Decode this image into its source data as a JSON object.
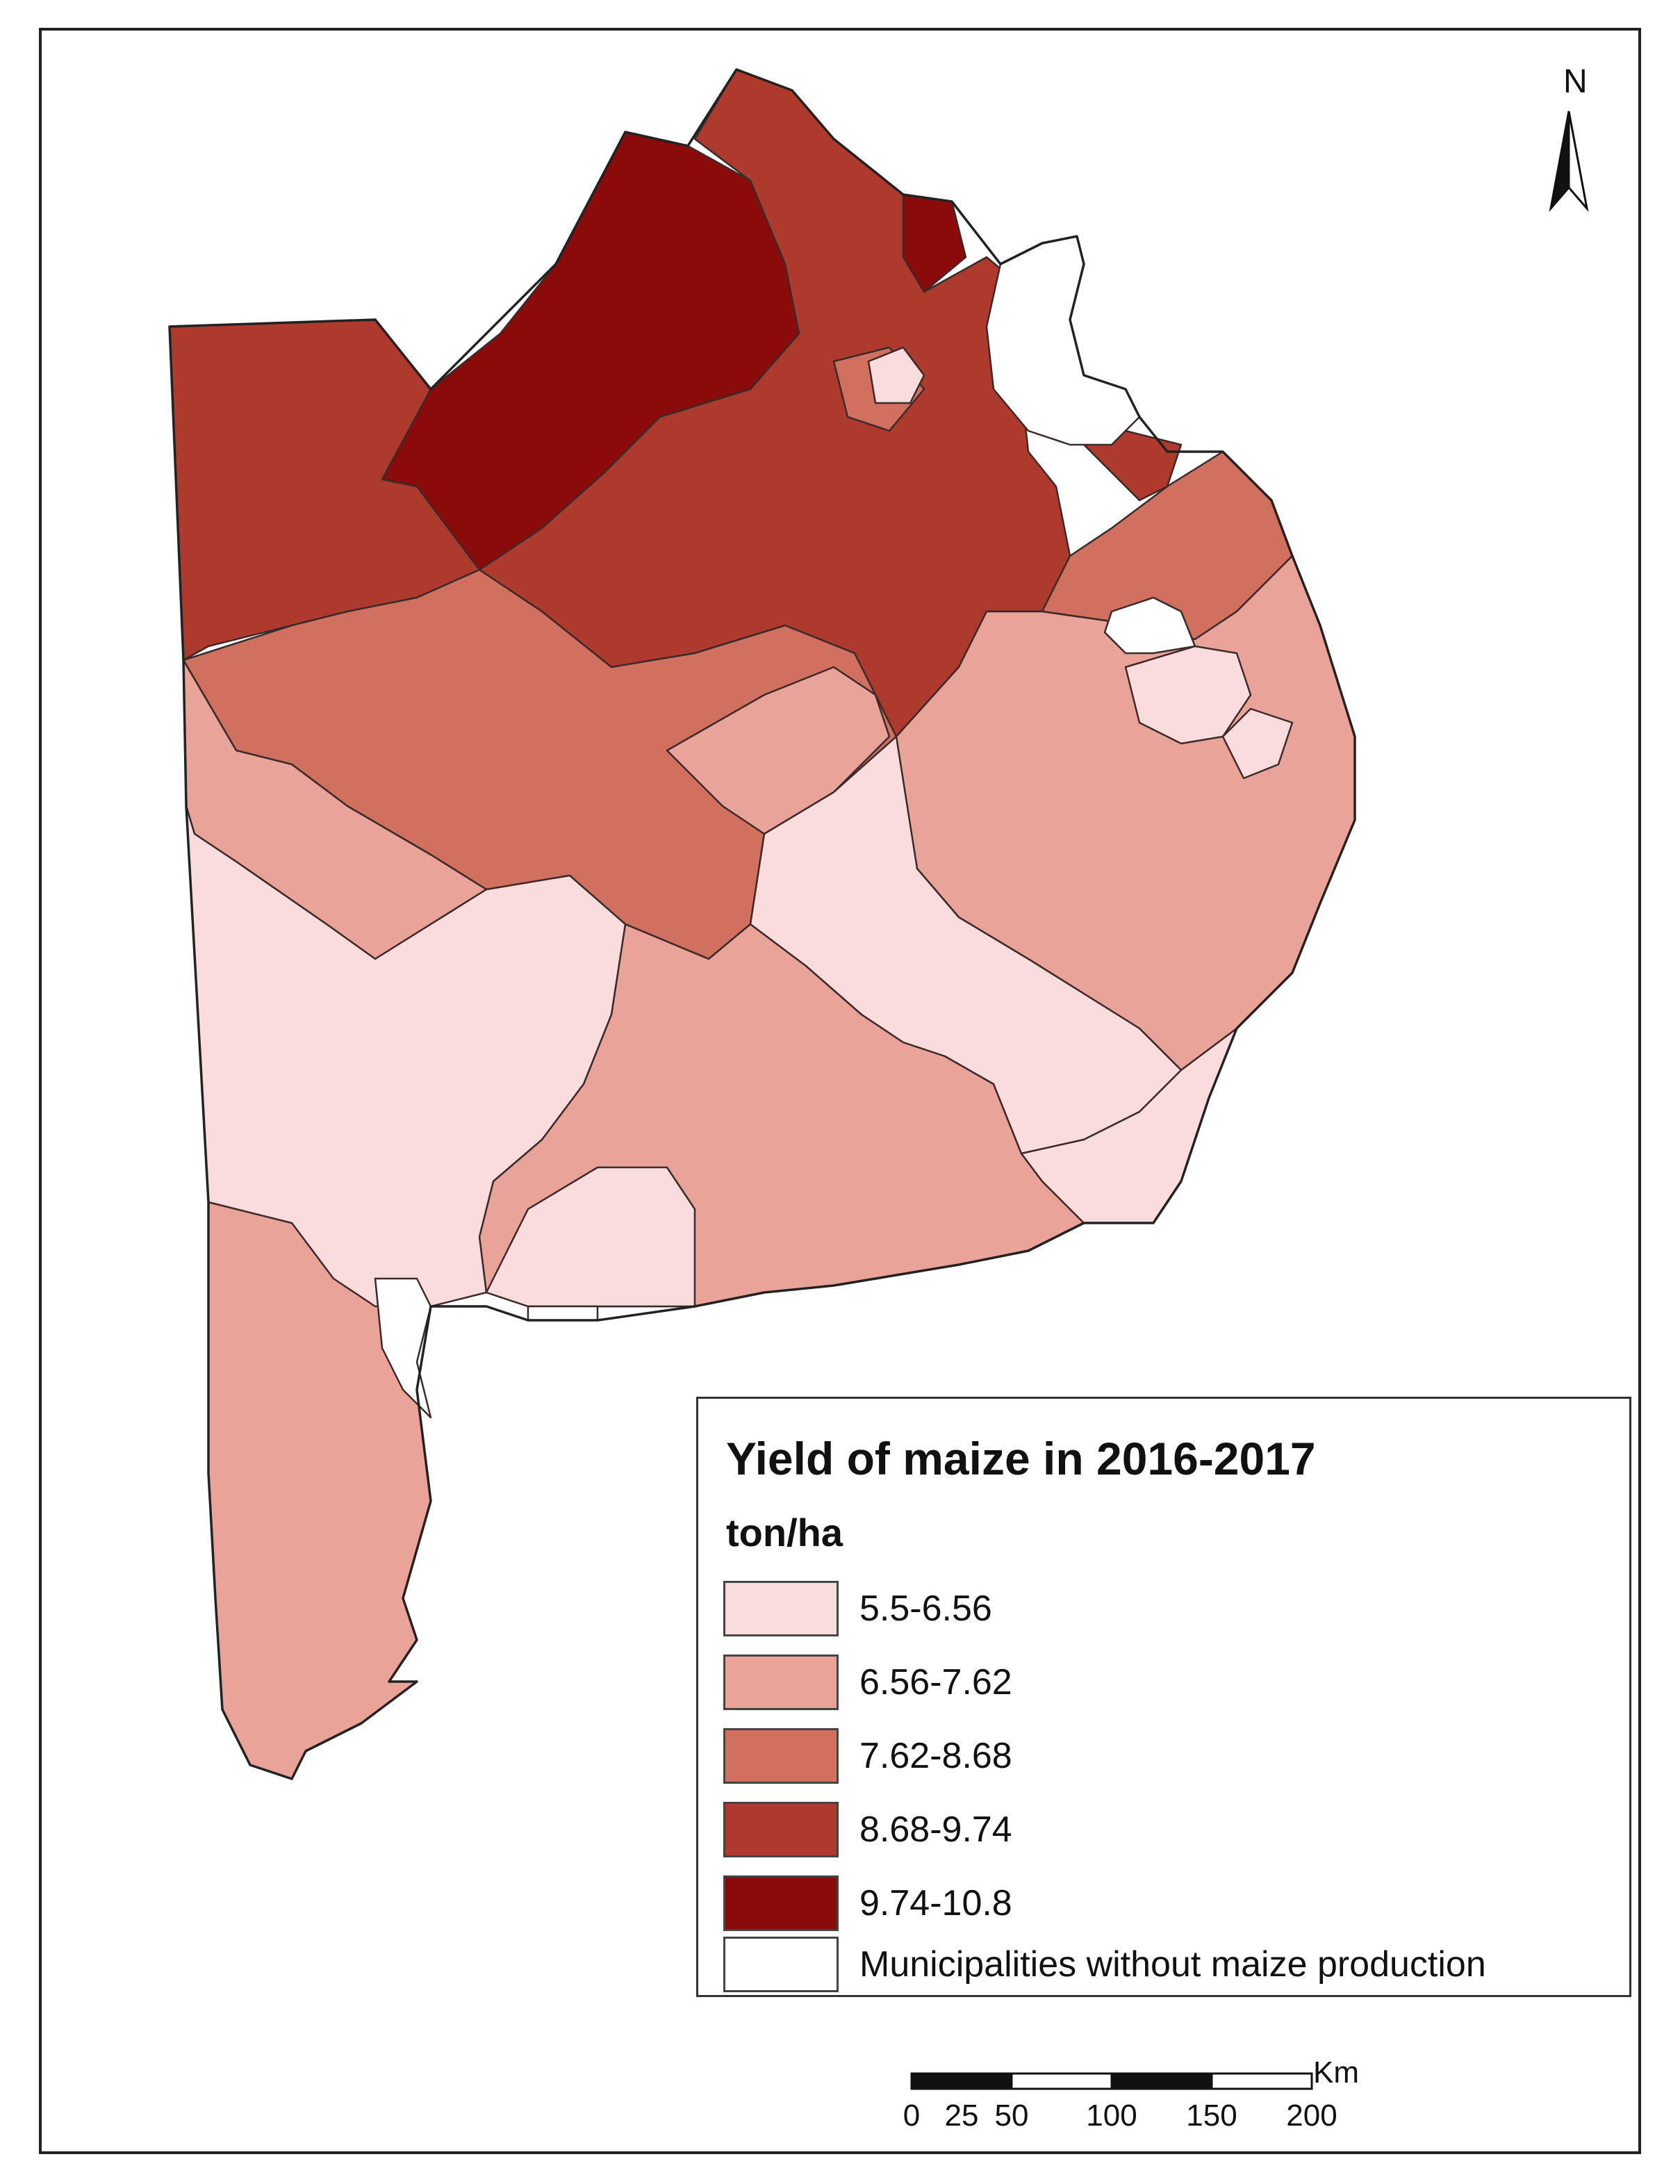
{
  "map": {
    "legend_title": "Yield of maize in 2016-2017",
    "legend_unit": "ton/ha",
    "legend_items": [
      {
        "label": "5.5-6.56",
        "color": "#fadcdc"
      },
      {
        "label": "6.56-7.62",
        "color": "#e9a398"
      },
      {
        "label": "7.62-8.68",
        "color": "#d1705f"
      },
      {
        "label": "8.68-9.74",
        "color": "#ad3a2d"
      },
      {
        "label": "9.74-10.8",
        "color": "#8b0a0a"
      },
      {
        "label": "Municipalities without maize production",
        "color": "#ffffff"
      }
    ],
    "north_label": "N",
    "scale_bar": {
      "unit": "Km",
      "ticks": [
        "0",
        "25",
        "50",
        "100",
        "150",
        "200"
      ]
    }
  }
}
